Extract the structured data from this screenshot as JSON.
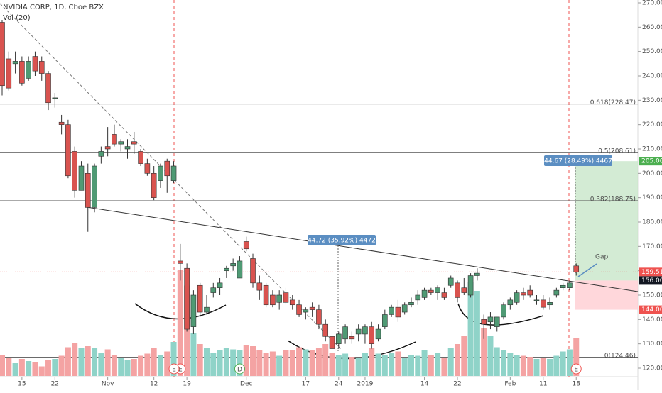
{
  "chart_data": {
    "type": "candlestick",
    "title": "NVIDIA CORP, 1D, Cboe BZX",
    "subtitle": "Vol (20)",
    "up_color": "#4f9a74",
    "down_color": "#d9534f",
    "volume_up_color": "#8fd3c8",
    "volume_down_color": "#f4a3a3",
    "ylim": [
      120,
      270
    ],
    "yticks": [
      {
        "value": 120,
        "label": "120.00"
      },
      {
        "value": 130,
        "label": "130.00"
      },
      {
        "value": 140,
        "label": "140.00"
      },
      {
        "value": 150,
        "label": "150.00"
      },
      {
        "value": 160,
        "label": "160.00"
      },
      {
        "value": 170,
        "label": "170.00"
      },
      {
        "value": 180,
        "label": "180.00"
      },
      {
        "value": 190,
        "label": "190.00"
      },
      {
        "value": 200,
        "label": "200.00"
      },
      {
        "value": 210,
        "label": "210.00"
      },
      {
        "value": 220,
        "label": "220.00"
      },
      {
        "value": 230,
        "label": "230.00"
      },
      {
        "value": 240,
        "label": "240.00"
      },
      {
        "value": 250,
        "label": "250.00"
      },
      {
        "value": 260,
        "label": "260.00"
      },
      {
        "value": 270,
        "label": "270.00"
      }
    ],
    "xticks": [
      {
        "value": 3,
        "label": "15"
      },
      {
        "value": 8,
        "label": "22"
      },
      {
        "value": 16,
        "label": "Nov"
      },
      {
        "value": 23,
        "label": "12"
      },
      {
        "value": 28,
        "label": "19"
      },
      {
        "value": 37,
        "label": "Dec"
      },
      {
        "value": 46,
        "label": "17"
      },
      {
        "value": 51,
        "label": "24"
      },
      {
        "value": 55,
        "label": "2019"
      },
      {
        "value": 64,
        "label": "14"
      },
      {
        "value": 69,
        "label": "22"
      },
      {
        "value": 77,
        "label": "Feb"
      },
      {
        "value": 82,
        "label": "11"
      },
      {
        "value": 87,
        "label": "18"
      }
    ],
    "candles": [
      [
        262,
        263,
        232,
        236
      ],
      [
        247,
        250,
        234,
        235
      ],
      [
        245,
        250,
        241,
        246
      ],
      [
        246,
        248,
        236,
        237
      ],
      [
        239,
        248,
        238,
        246
      ],
      [
        248,
        250,
        240,
        242
      ],
      [
        246,
        248,
        238,
        241
      ],
      [
        241,
        242,
        226,
        229
      ],
      [
        231,
        233,
        227,
        231
      ],
      [
        221,
        224,
        216,
        220
      ],
      [
        220,
        222,
        198,
        199
      ],
      [
        209,
        211,
        190,
        193
      ],
      [
        193,
        205,
        193,
        203
      ],
      [
        200,
        204,
        176,
        186
      ],
      [
        186,
        204,
        184,
        203
      ],
      [
        207,
        211,
        204,
        209
      ],
      [
        211,
        219,
        207,
        210
      ],
      [
        216,
        220,
        211,
        212
      ],
      [
        212,
        214,
        209,
        213
      ],
      [
        210,
        214,
        206,
        211
      ],
      [
        213,
        217,
        208,
        212
      ],
      [
        209,
        210,
        203,
        204
      ],
      [
        204,
        206,
        199,
        200
      ],
      [
        200,
        203,
        189,
        190
      ],
      [
        197,
        204,
        194,
        203
      ],
      [
        205,
        206,
        192,
        199
      ],
      [
        197,
        205,
        196,
        203
      ],
      [
        164,
        171,
        156,
        163
      ],
      [
        161,
        163,
        135,
        136
      ],
      [
        137,
        152,
        134,
        150
      ],
      [
        154,
        155,
        141,
        143
      ],
      [
        143,
        150,
        142,
        145
      ],
      [
        151,
        155,
        149,
        153
      ],
      [
        153,
        157,
        150,
        155
      ],
      [
        160,
        162,
        157,
        161
      ],
      [
        162,
        165,
        160,
        163
      ],
      [
        157,
        166,
        157,
        164
      ],
      [
        172,
        174,
        168,
        169
      ],
      [
        165,
        167,
        153,
        155
      ],
      [
        155,
        158,
        148,
        152
      ],
      [
        154,
        155,
        145,
        146
      ],
      [
        150,
        152,
        145,
        146
      ],
      [
        147,
        152,
        144,
        150
      ],
      [
        151,
        153,
        146,
        147
      ],
      [
        148,
        150,
        144,
        146
      ],
      [
        146,
        148,
        141,
        142
      ],
      [
        143,
        145,
        140,
        144
      ],
      [
        145,
        147,
        141,
        144
      ],
      [
        144,
        146,
        136,
        138
      ],
      [
        138,
        140,
        131,
        133
      ],
      [
        133,
        135,
        127,
        128
      ],
      [
        130,
        135,
        128,
        134
      ],
      [
        132,
        138,
        130,
        137
      ],
      [
        133,
        135,
        130,
        132
      ],
      [
        134,
        138,
        131,
        136
      ],
      [
        134,
        138,
        130,
        137
      ],
      [
        137,
        139,
        128,
        130
      ],
      [
        132,
        138,
        131,
        136
      ],
      [
        137,
        144,
        136,
        142
      ],
      [
        142,
        146,
        141,
        145
      ],
      [
        145,
        148,
        139,
        141
      ],
      [
        143,
        147,
        142,
        146
      ],
      [
        146,
        149,
        145,
        147
      ],
      [
        148,
        152,
        146,
        150
      ],
      [
        149,
        153,
        148,
        152
      ],
      [
        152,
        153,
        150,
        151
      ],
      [
        151,
        154,
        148,
        153
      ],
      [
        151,
        153,
        148,
        149
      ],
      [
        154,
        158,
        153,
        157
      ],
      [
        155,
        156,
        147,
        149
      ],
      [
        153,
        157,
        150,
        151
      ],
      [
        150,
        159,
        149,
        158
      ],
      [
        158,
        161,
        156,
        159
      ],
      [
        140,
        142,
        132,
        138
      ],
      [
        139,
        143,
        136,
        141
      ],
      [
        137,
        141,
        135,
        141
      ],
      [
        141,
        147,
        140,
        146
      ],
      [
        146,
        149,
        144,
        148
      ],
      [
        147,
        152,
        146,
        151
      ],
      [
        151,
        153,
        148,
        150
      ],
      [
        152,
        154,
        149,
        150
      ],
      [
        148,
        150,
        146,
        148
      ],
      [
        148,
        150,
        144,
        145
      ],
      [
        146,
        149,
        144,
        147
      ],
      [
        150,
        153,
        149,
        152
      ],
      [
        153,
        155,
        152,
        154
      ],
      [
        153,
        156,
        152,
        155
      ],
      [
        162,
        163,
        158,
        159.51
      ]
    ],
    "volume": [
      20,
      17,
      12,
      16,
      14,
      13,
      9,
      15,
      16,
      19,
      27,
      31,
      26,
      28,
      26,
      22,
      25,
      20,
      17,
      15,
      16,
      19,
      21,
      26,
      20,
      23,
      32,
      100,
      85,
      40,
      30,
      26,
      22,
      24,
      26,
      25,
      24,
      29,
      28,
      24,
      22,
      23,
      19,
      24,
      24,
      27,
      25,
      24,
      26,
      30,
      22,
      20,
      21,
      18,
      17,
      22,
      26,
      21,
      20,
      22,
      23,
      17,
      20,
      19,
      24,
      20,
      22,
      17,
      26,
      30,
      38,
      88,
      80,
      45,
      38,
      27,
      24,
      22,
      20,
      19,
      18,
      16,
      17,
      16,
      19,
      23,
      25,
      36
    ],
    "levels": [
      {
        "value": 228.47,
        "label": "0.618(228.47)"
      },
      {
        "value": 208.61,
        "label": "0.5(208.61)"
      },
      {
        "value": 188.75,
        "label": "0.382(188.75)"
      },
      {
        "value": 124.46,
        "label": "0(124.46)"
      }
    ],
    "price_tags": [
      {
        "value": 270,
        "label": "270.00",
        "color": "#ffffff"
      },
      {
        "value": 205,
        "label": "205.00",
        "color": "#4caf50"
      },
      {
        "value": 159.51,
        "label": "159.51",
        "color": "#ef5350"
      },
      {
        "value": 156,
        "label": "156.00",
        "color": "#131722"
      },
      {
        "value": 144,
        "label": "144.00",
        "color": "#ef5350"
      }
    ],
    "measures": [
      "44.72 (35.92%) 4472",
      "44.67 (28.49%) 4467"
    ],
    "annotation": "Gap",
    "events": [
      {
        "x": 27,
        "label": "E"
      },
      {
        "x": 36,
        "label": "D"
      },
      {
        "x": 87,
        "label": "E"
      },
      {
        "x": 26,
        "label": "E"
      }
    ]
  }
}
